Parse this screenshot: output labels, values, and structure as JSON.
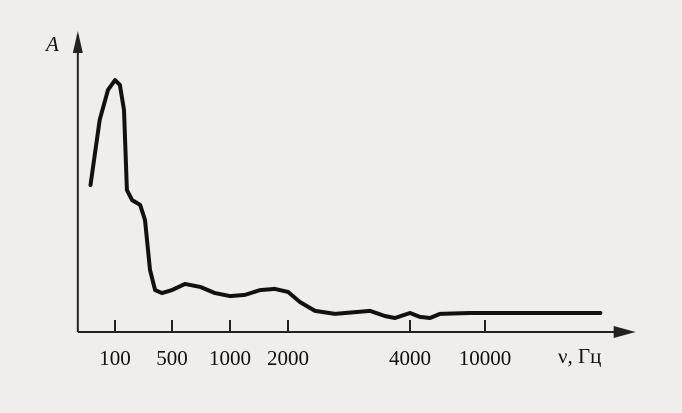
{
  "chart_data": {
    "type": "line",
    "y_label": "A",
    "x_label": "ν, Гц",
    "x": [
      50,
      65,
      82,
      100,
      115,
      129,
      140,
      162,
      203,
      233,
      269,
      310,
      377,
      500,
      584,
      700,
      836,
      1000,
      1196,
      1431,
      1711,
      2000,
      2140,
      2332,
      2612,
      3186,
      3467,
      3674,
      4000,
      4516,
      5106,
      5770,
      8313,
      40900
    ],
    "series": [
      {
        "color": "#111111",
        "values": [
          49.5,
          71.4,
          81.5,
          84.8,
          83.2,
          74.7,
          47.8,
          44.4,
          42.8,
          37.7,
          20.9,
          14.1,
          13.1,
          14.1,
          16.2,
          15.2,
          13.1,
          12.1,
          12.5,
          14.1,
          14.5,
          13.5,
          10.1,
          7.1,
          6.1,
          7.1,
          5.4,
          4.7,
          6.4,
          5.1,
          4.7,
          6.1,
          6.4,
          6.4
        ]
      }
    ],
    "xlim": [
      35,
      60000
    ],
    "ylim": [
      0,
      100
    ],
    "xticks": [
      100,
      500,
      1000,
      2000,
      4000,
      10000
    ]
  }
}
